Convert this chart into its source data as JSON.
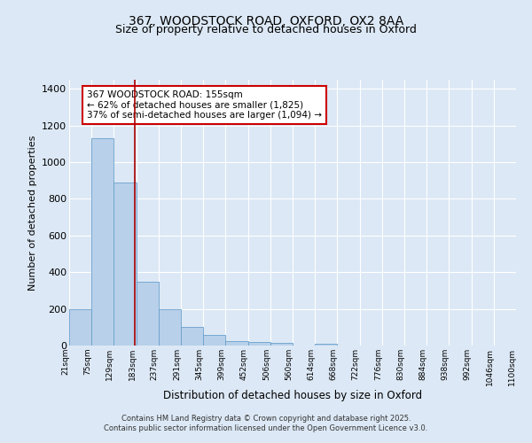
{
  "title1": "367, WOODSTOCK ROAD, OXFORD, OX2 8AA",
  "title2": "Size of property relative to detached houses in Oxford",
  "xlabel": "Distribution of detached houses by size in Oxford",
  "ylabel": "Number of detached properties",
  "bar_values": [
    200,
    1130,
    890,
    350,
    200,
    100,
    60,
    25,
    20,
    15,
    0,
    10,
    0,
    0,
    0,
    0,
    0,
    0,
    0,
    0
  ],
  "x_labels": [
    "21sqm",
    "75sqm",
    "129sqm",
    "183sqm",
    "237sqm",
    "291sqm",
    "345sqm",
    "399sqm",
    "452sqm",
    "506sqm",
    "560sqm",
    "614sqm",
    "668sqm",
    "722sqm",
    "776sqm",
    "830sqm",
    "884sqm",
    "938sqm",
    "992sqm",
    "1046sqm",
    "1100sqm"
  ],
  "bar_color": "#b8d0ea",
  "bar_edge_color": "#6aa0cc",
  "background_color": "#dce8f5",
  "grid_color": "#ffffff",
  "red_line_x": 2.42,
  "red_line_color": "#aa0000",
  "annotation_text": "367 WOODSTOCK ROAD: 155sqm\n← 62% of detached houses are smaller (1,825)\n37% of semi-detached houses are larger (1,094) →",
  "annotation_box_color": "#ffffff",
  "annotation_box_edge": "#cc0000",
  "ylim": [
    0,
    1450
  ],
  "yticks": [
    0,
    200,
    400,
    600,
    800,
    1000,
    1200,
    1400
  ],
  "footer_line1": "Contains HM Land Registry data © Crown copyright and database right 2025.",
  "footer_line2": "Contains public sector information licensed under the Open Government Licence v3.0."
}
